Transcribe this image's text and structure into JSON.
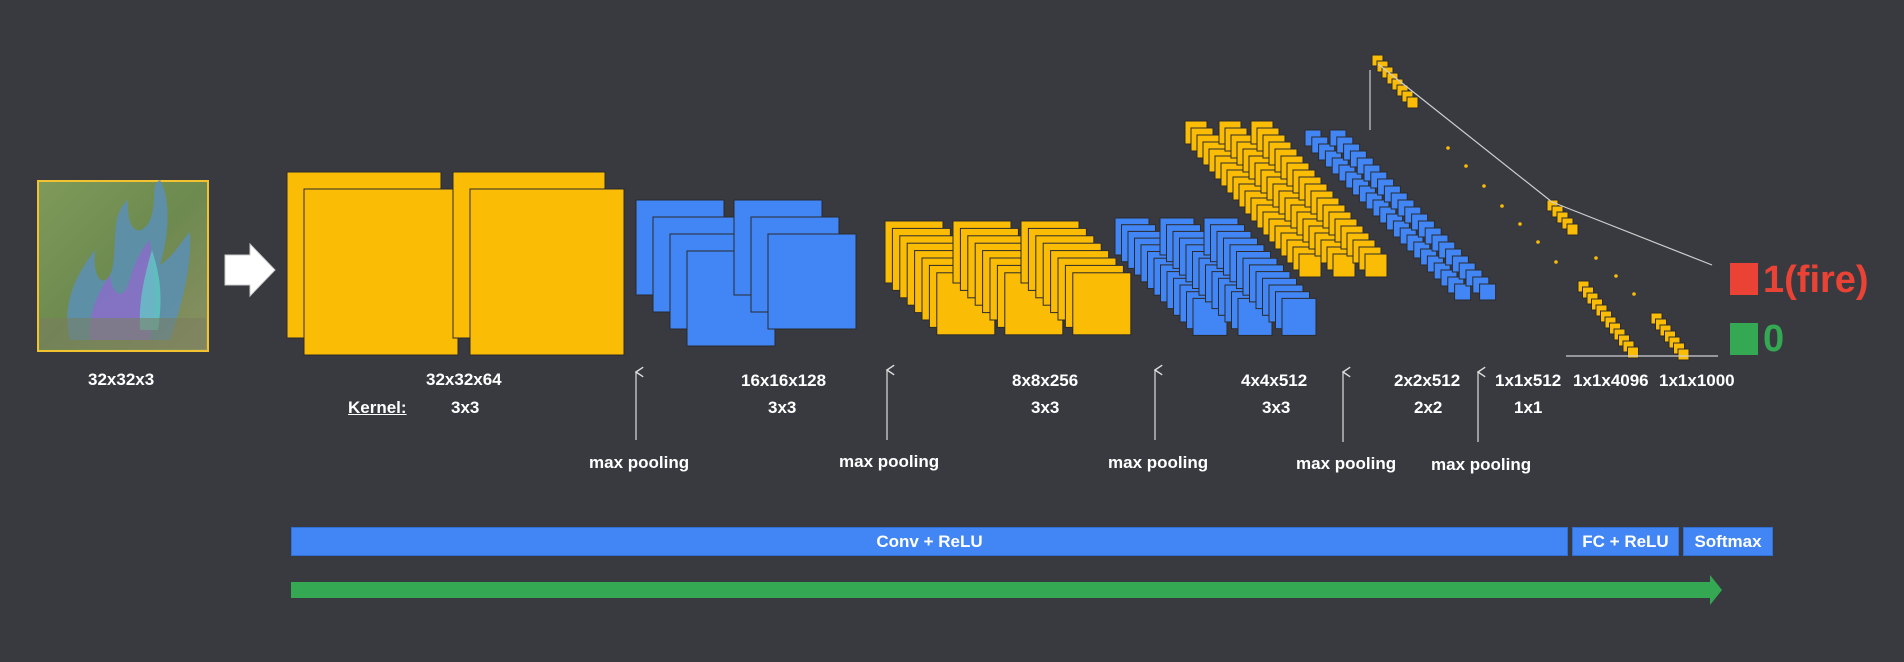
{
  "colors": {
    "background": "#393a40",
    "conv_block": "#fbbc05",
    "pool_block": "#4285f4",
    "block_border": "#2b2b2b",
    "conv_bar": "#4285f4",
    "arrow_bar": "#34a853",
    "fire": "#ea4335",
    "no_fire": "#34a853",
    "text": "#ffffff"
  },
  "input": {
    "dims": "32x32x3",
    "thumbnail": "fire-image"
  },
  "stages": [
    {
      "dims": "32x32x64",
      "kernel": "3x3"
    },
    {
      "dims": "16x16x128",
      "kernel": "3x3"
    },
    {
      "dims": "8x8x256",
      "kernel": "3x3"
    },
    {
      "dims": "4x4x512",
      "kernel": "3x3"
    },
    {
      "dims": "2x2x512",
      "kernel": "2x2"
    },
    {
      "dims": "1x1x512",
      "kernel": "1x1"
    },
    {
      "dims": "1x1x4096"
    },
    {
      "dims": "1x1x1000"
    }
  ],
  "kernel_label": "Kernel:",
  "pooling": [
    "max pooling",
    "max pooling",
    "max pooling",
    "max pooling",
    "max pooling"
  ],
  "layers": {
    "conv": "Conv + ReLU",
    "fc": "FC + ReLU",
    "softmax": "Softmax"
  },
  "outputs": [
    {
      "label": "1(fire)",
      "color": "#ea4335"
    },
    {
      "label": "0",
      "color": "#34a853"
    }
  ]
}
